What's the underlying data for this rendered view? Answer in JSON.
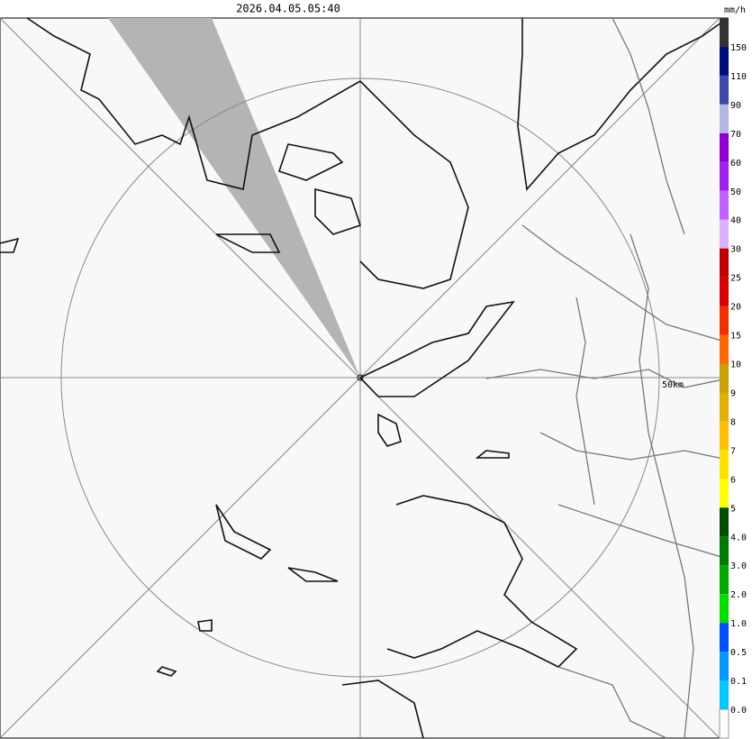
{
  "header": {
    "timestamp": "2026.04.05.05:40",
    "unit": "mm/h"
  },
  "map": {
    "range_label": "50km"
  },
  "legend": {
    "labels": [
      "150",
      "110",
      "90",
      "70",
      "60",
      "50",
      "40",
      "30",
      "25",
      "20",
      "15",
      "10",
      "9",
      "8",
      "7",
      "6",
      "5",
      "4.0",
      "3.0",
      "2.0",
      "1.0",
      "0.5",
      "0.1",
      "0.0"
    ],
    "colors": [
      "#333333",
      "#000e7a",
      "#3d48a8",
      "#b3b8e0",
      "#9000d0",
      "#a020f0",
      "#c060ff",
      "#dab0ff",
      "#c00000",
      "#d80000",
      "#f03000",
      "#ff6a00",
      "#c8a000",
      "#e0b000",
      "#ffc000",
      "#ffe000",
      "#ffff00",
      "#004d00",
      "#007a00",
      "#00a800",
      "#00e000",
      "#0050ff",
      "#0098ff",
      "#00c8ff",
      "#ffffff"
    ]
  }
}
